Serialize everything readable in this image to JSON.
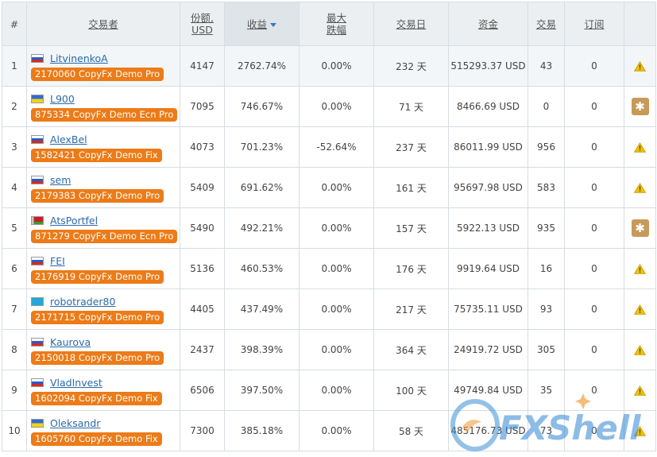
{
  "headers": {
    "num": "#",
    "trader": "交易者",
    "share_l1": "份额,",
    "share_l2": "USD",
    "profit": "收益",
    "drawdown_l1": "最大",
    "drawdown_l2": "跌幅",
    "days": "交易日",
    "funds": "资金",
    "trades": "交易",
    "subs": "订阅"
  },
  "rows": [
    {
      "n": "1",
      "flag": "ru",
      "name": "LitvinenkoA",
      "acct": "2170060 CopyFx Demo Pro",
      "share": "4147",
      "profit": "2762.74%",
      "dd": "0.00%",
      "days": "232 天",
      "funds": "515293.37 USD",
      "trades": "43",
      "subs": "0",
      "status": "warning-icon"
    },
    {
      "n": "2",
      "flag": "ua",
      "name": "L900",
      "acct": "875334 CopyFx Demo Ecn Pro",
      "share": "7095",
      "profit": "746.67%",
      "dd": "0.00%",
      "days": "71 天",
      "funds": "8466.69 USD",
      "trades": "0",
      "subs": "0",
      "status": "star-icon"
    },
    {
      "n": "3",
      "flag": "ru",
      "name": "AlexBel",
      "acct": "1582421 CopyFx Demo Fix",
      "share": "4073",
      "profit": "701.23%",
      "dd": "-52.64%",
      "days": "237 天",
      "funds": "86011.99 USD",
      "trades": "956",
      "subs": "0",
      "status": "warning-icon"
    },
    {
      "n": "4",
      "flag": "ru",
      "name": "sem",
      "acct": "2179383 CopyFx Demo Pro",
      "share": "5409",
      "profit": "691.62%",
      "dd": "0.00%",
      "days": "161 天",
      "funds": "95697.98 USD",
      "trades": "583",
      "subs": "0",
      "status": "warning-icon"
    },
    {
      "n": "5",
      "flag": "by",
      "name": "AtsPortfel",
      "acct": "871279 CopyFx Demo Ecn Pro",
      "share": "5490",
      "profit": "492.21%",
      "dd": "0.00%",
      "days": "157 天",
      "funds": "5922.13 USD",
      "trades": "935",
      "subs": "0",
      "status": "star-icon"
    },
    {
      "n": "6",
      "flag": "ru",
      "name": "FEI",
      "acct": "2176919 CopyFx Demo Pro",
      "share": "5136",
      "profit": "460.53%",
      "dd": "0.00%",
      "days": "176 天",
      "funds": "9919.64 USD",
      "trades": "16",
      "subs": "0",
      "status": "warning-icon"
    },
    {
      "n": "7",
      "flag": "kz",
      "name": "robotrader80",
      "acct": "2171715 CopyFx Demo Pro",
      "share": "4405",
      "profit": "437.49%",
      "dd": "0.00%",
      "days": "217 天",
      "funds": "75735.11 USD",
      "trades": "93",
      "subs": "0",
      "status": "warning-icon"
    },
    {
      "n": "8",
      "flag": "ru",
      "name": "Kaurova",
      "acct": "2150018 CopyFx Demo Pro",
      "share": "2437",
      "profit": "398.39%",
      "dd": "0.00%",
      "days": "364 天",
      "funds": "24919.72 USD",
      "trades": "305",
      "subs": "0",
      "status": "warning-icon"
    },
    {
      "n": "9",
      "flag": "ru",
      "name": "VladInvest",
      "acct": "1602094 CopyFx Demo Fix",
      "share": "6506",
      "profit": "397.50%",
      "dd": "0.00%",
      "days": "100 天",
      "funds": "49749.84 USD",
      "trades": "35",
      "subs": "0",
      "status": "warning-icon"
    },
    {
      "n": "10",
      "flag": "ua",
      "name": "Oleksandr",
      "acct": "1605760 CopyFx Demo Fix",
      "share": "7300",
      "profit": "385.18%",
      "dd": "0.00%",
      "days": "58 天",
      "funds": "485176.73 USD",
      "trades": "73",
      "subs": "0",
      "status": "warning-icon"
    }
  ],
  "watermark": {
    "text": "FXShell"
  },
  "colors": {
    "badge": "#ec7b18",
    "link": "#2a6aa8",
    "header_bg": "#eceff1",
    "star_btn": "#c79a5a",
    "warning": "#f2c200"
  }
}
